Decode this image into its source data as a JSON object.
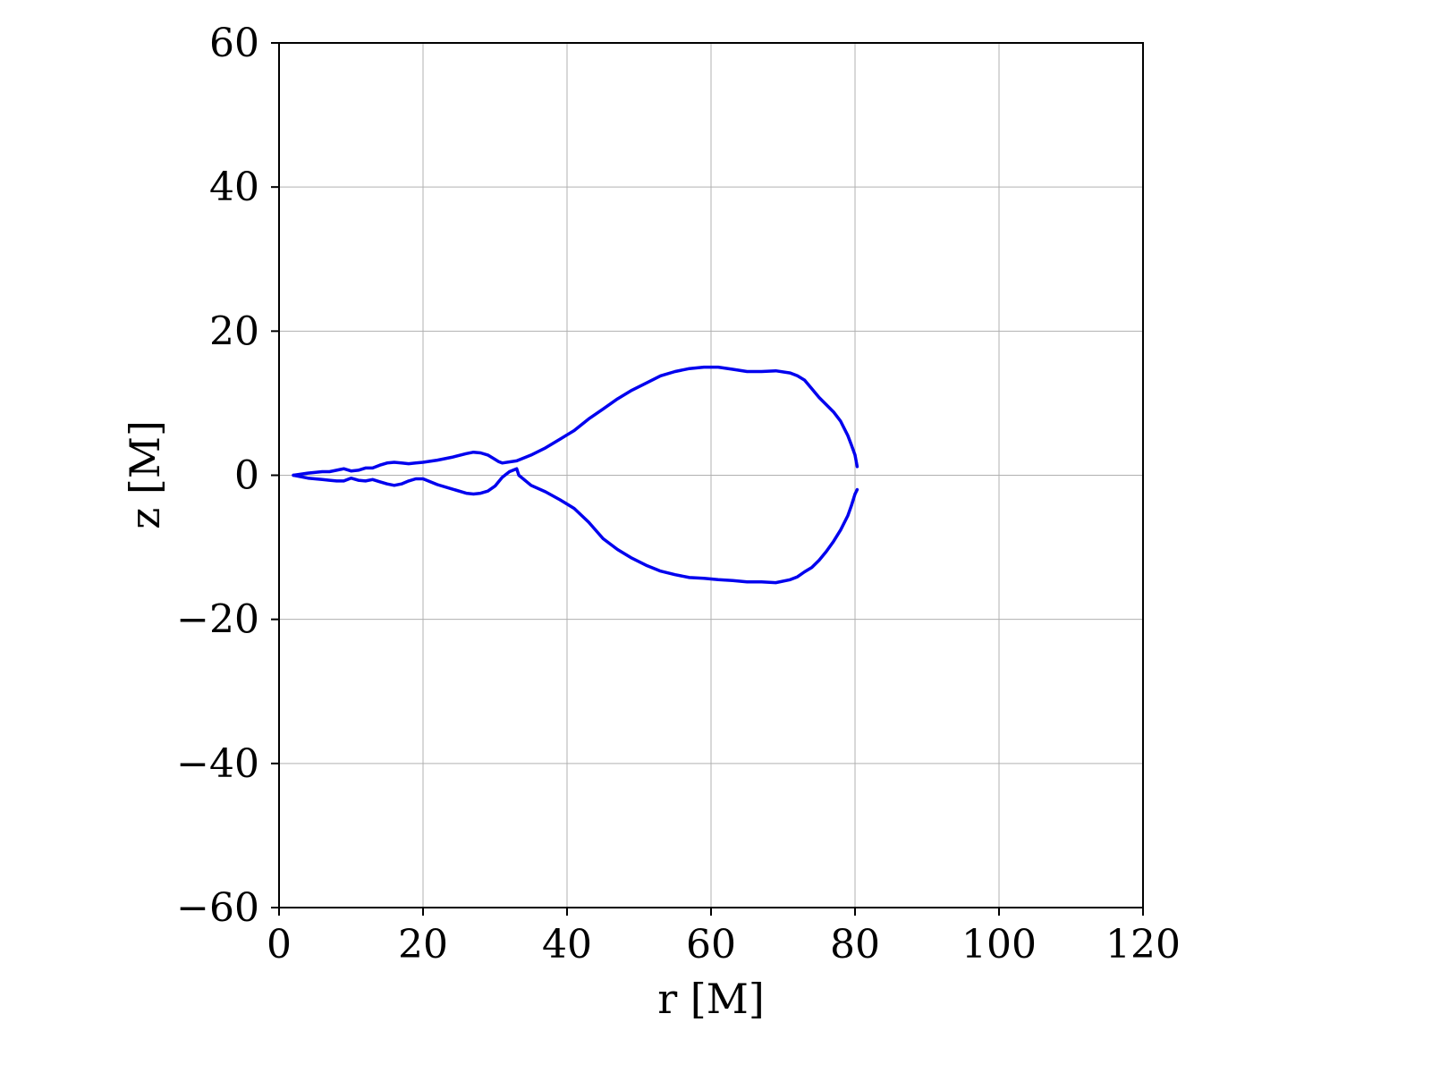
{
  "chart_data": {
    "type": "line",
    "xlabel": "r [M]",
    "ylabel": "z [M]",
    "xlim": [
      0,
      120
    ],
    "ylim": [
      -60,
      60
    ],
    "xticks": [
      0,
      20,
      40,
      60,
      80,
      100,
      120
    ],
    "yticks": [
      -60,
      -40,
      -20,
      0,
      20,
      40,
      60
    ],
    "xtick_labels": [
      "0",
      "20",
      "40",
      "60",
      "80",
      "100",
      "120"
    ],
    "ytick_labels": [
      "−60",
      "−40",
      "−20",
      "0",
      "20",
      "40",
      "60"
    ],
    "grid": true,
    "line_color": "#0000ee",
    "series": [
      {
        "x": [
          2,
          4,
          6,
          7,
          8,
          9,
          10,
          11,
          12,
          13,
          14,
          15,
          16,
          17,
          18,
          19,
          20,
          22,
          24,
          26,
          27,
          28,
          29,
          30,
          30.5,
          31,
          33,
          35,
          37,
          39,
          41,
          43,
          45,
          47,
          49,
          51,
          53,
          55,
          57,
          59,
          61,
          63,
          65,
          67,
          69,
          71,
          72,
          73,
          74,
          75,
          76,
          77,
          78,
          79,
          79.5,
          80,
          80.3
        ],
        "y": [
          0,
          0.3,
          0.5,
          0.5,
          0.7,
          0.9,
          0.6,
          0.7,
          1.0,
          1.0,
          1.4,
          1.7,
          1.8,
          1.7,
          1.6,
          1.7,
          1.8,
          2.1,
          2.5,
          3.0,
          3.2,
          3.1,
          2.8,
          2.2,
          1.9,
          1.7,
          2.0,
          2.8,
          3.8,
          5.0,
          6.2,
          7.8,
          9.2,
          10.6,
          11.8,
          12.8,
          13.8,
          14.4,
          14.8,
          15.0,
          15.0,
          14.7,
          14.4,
          14.4,
          14.5,
          14.2,
          13.8,
          13.2,
          12.0,
          10.8,
          9.8,
          8.8,
          7.5,
          5.5,
          4.2,
          2.8,
          1.2
        ]
      },
      {
        "x": [
          2,
          4,
          6,
          7,
          8,
          9,
          10,
          11,
          12,
          13,
          14,
          15,
          16,
          17,
          18,
          19,
          20,
          22,
          24,
          26,
          27,
          28,
          29,
          30,
          31,
          32,
          33,
          33.3,
          35,
          37,
          39,
          41,
          43,
          45,
          47,
          49,
          51,
          53,
          55,
          57,
          59,
          61,
          63,
          65,
          67,
          69,
          71,
          72,
          73,
          74,
          75,
          76,
          77,
          78,
          79,
          79.5,
          80,
          80.3
        ],
        "y": [
          0,
          -0.4,
          -0.6,
          -0.7,
          -0.8,
          -0.8,
          -0.4,
          -0.7,
          -0.8,
          -0.6,
          -0.9,
          -1.2,
          -1.4,
          -1.2,
          -0.8,
          -0.5,
          -0.5,
          -1.3,
          -1.9,
          -2.5,
          -2.6,
          -2.5,
          -2.2,
          -1.5,
          -0.3,
          0.5,
          0.9,
          0,
          -1.4,
          -2.3,
          -3.4,
          -4.6,
          -6.5,
          -8.8,
          -10.3,
          -11.5,
          -12.5,
          -13.3,
          -13.8,
          -14.2,
          -14.3,
          -14.5,
          -14.6,
          -14.8,
          -14.8,
          -14.9,
          -14.5,
          -14.1,
          -13.4,
          -12.8,
          -11.8,
          -10.6,
          -9.2,
          -7.6,
          -5.6,
          -4.2,
          -2.6,
          -2.0
        ]
      }
    ]
  }
}
